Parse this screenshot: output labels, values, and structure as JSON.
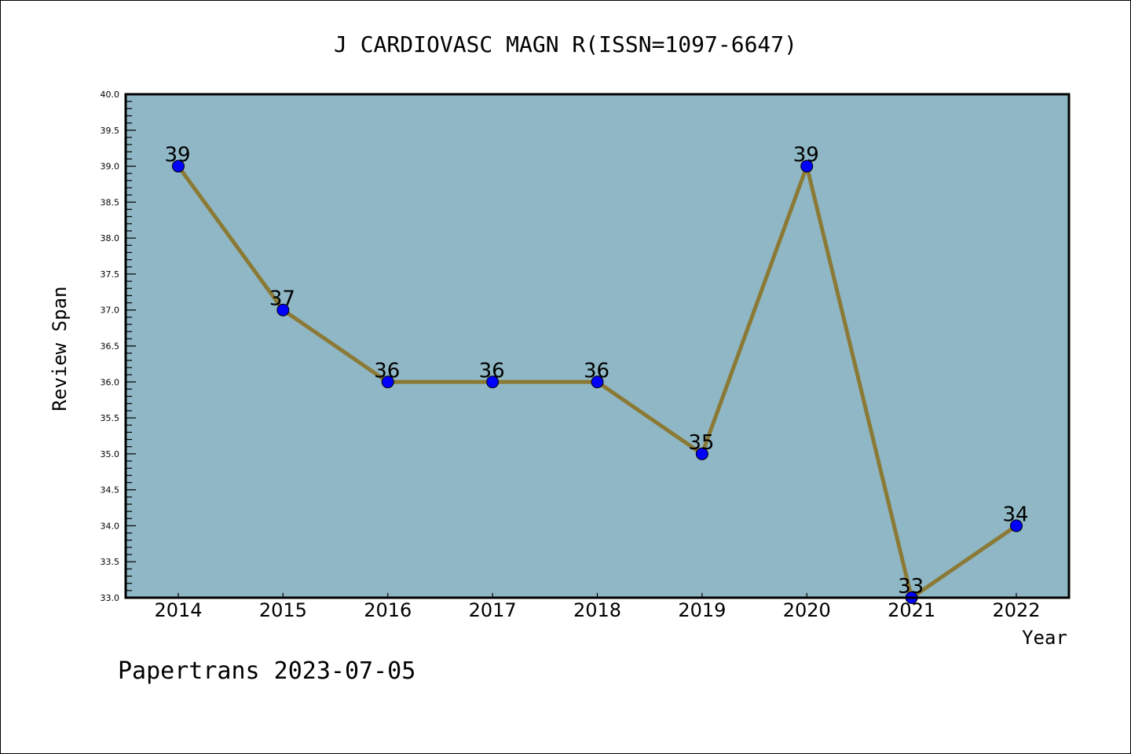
{
  "chart_data": {
    "type": "line",
    "title": "J CARDIOVASC MAGN R(ISSN=1097-6647)",
    "xlabel": "Year",
    "ylabel": "Review Span",
    "x": [
      "2014",
      "2015",
      "2016",
      "2017",
      "2018",
      "2019",
      "2020",
      "2021",
      "2022"
    ],
    "series": [
      {
        "name": "Review Span",
        "values": [
          39,
          37,
          36,
          36,
          36,
          35,
          39,
          33,
          34
        ]
      }
    ],
    "data_labels": [
      "39",
      "37",
      "36",
      "36",
      "36",
      "35",
      "39",
      "33",
      "34"
    ],
    "ylim": [
      33.0,
      40.0
    ],
    "yticks": [
      "33.0",
      "33.5",
      "34.0",
      "34.5",
      "35.0",
      "35.5",
      "36.0",
      "36.5",
      "37.0",
      "37.5",
      "38.0",
      "38.5",
      "39.0",
      "39.5",
      "40.0"
    ],
    "grid": false,
    "colors": {
      "background": "#8fb7c5",
      "line": "#8b7a36",
      "marker": "#0000ff"
    }
  },
  "footer": "Papertrans 2023-07-05"
}
